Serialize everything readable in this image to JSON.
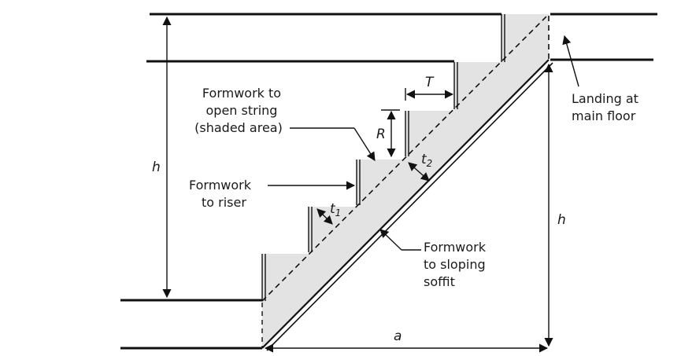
{
  "labels": {
    "open_string": [
      "Formwork to",
      "open string",
      "(shaded area)"
    ],
    "riser": [
      "Formwork",
      "to riser"
    ],
    "soffit": [
      "Formwork",
      "to sloping",
      "soffit"
    ],
    "landing": [
      "Landing at",
      "main floor"
    ]
  },
  "symbols": {
    "h_left": "h",
    "h_right": "h",
    "a": "a",
    "T": "T",
    "R": "R",
    "t1_base": "t",
    "t1_sub": "1",
    "t2_base": "t",
    "t2_sub": "2"
  },
  "colors": {
    "shade": "#e3e3e3",
    "line": "#111111"
  }
}
